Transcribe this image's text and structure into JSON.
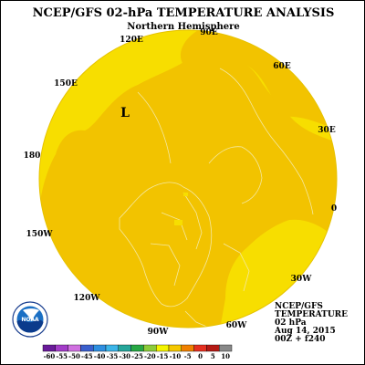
{
  "title": "NCEP/GFS 02-hPa TEMPERATURE ANALYSIS",
  "subtitle": "Northern Hemisphere",
  "longitude_labels": [
    {
      "id": "lon-90e",
      "text": "90E"
    },
    {
      "id": "lon-120e",
      "text": "120E"
    },
    {
      "id": "lon-60e",
      "text": "60E"
    },
    {
      "id": "lon-150e",
      "text": "150E"
    },
    {
      "id": "lon-30e",
      "text": "30E"
    },
    {
      "id": "lon-180",
      "text": "180"
    },
    {
      "id": "lon-0",
      "text": "0"
    },
    {
      "id": "lon-150w",
      "text": "150W"
    },
    {
      "id": "lon-30w",
      "text": "30W"
    },
    {
      "id": "lon-120w",
      "text": "120W"
    },
    {
      "id": "lon-60w",
      "text": "60W"
    },
    {
      "id": "lon-90w",
      "text": "90W"
    }
  ],
  "low_marker": "L",
  "info_block": [
    "NCEP/GFS",
    "TEMPERATURE",
    "02 hPa",
    "Aug 14, 2015",
    "00Z + f240"
  ],
  "logo": {
    "text": "NOAA"
  },
  "colorbar": {
    "ticks": [
      "-60",
      "-55",
      "-50",
      "-45",
      "-40",
      "-35",
      "-30",
      "-25",
      "-20",
      "-15",
      "-10",
      "-5",
      "0",
      "5",
      "10"
    ],
    "colors": [
      "#6a1b9a",
      "#a33cc8",
      "#d070e0",
      "#3a5fcd",
      "#2e8ee0",
      "#3cb5e8",
      "#26a69a",
      "#27a844",
      "#8ccc3a",
      "#f4f400",
      "#f5c800",
      "#f08000",
      "#e53020",
      "#b41a14",
      "#888888"
    ]
  },
  "colors": {
    "background_warm": "#f2c300",
    "warm_patch": "#f7de00",
    "outline": "#f4e8a0"
  }
}
